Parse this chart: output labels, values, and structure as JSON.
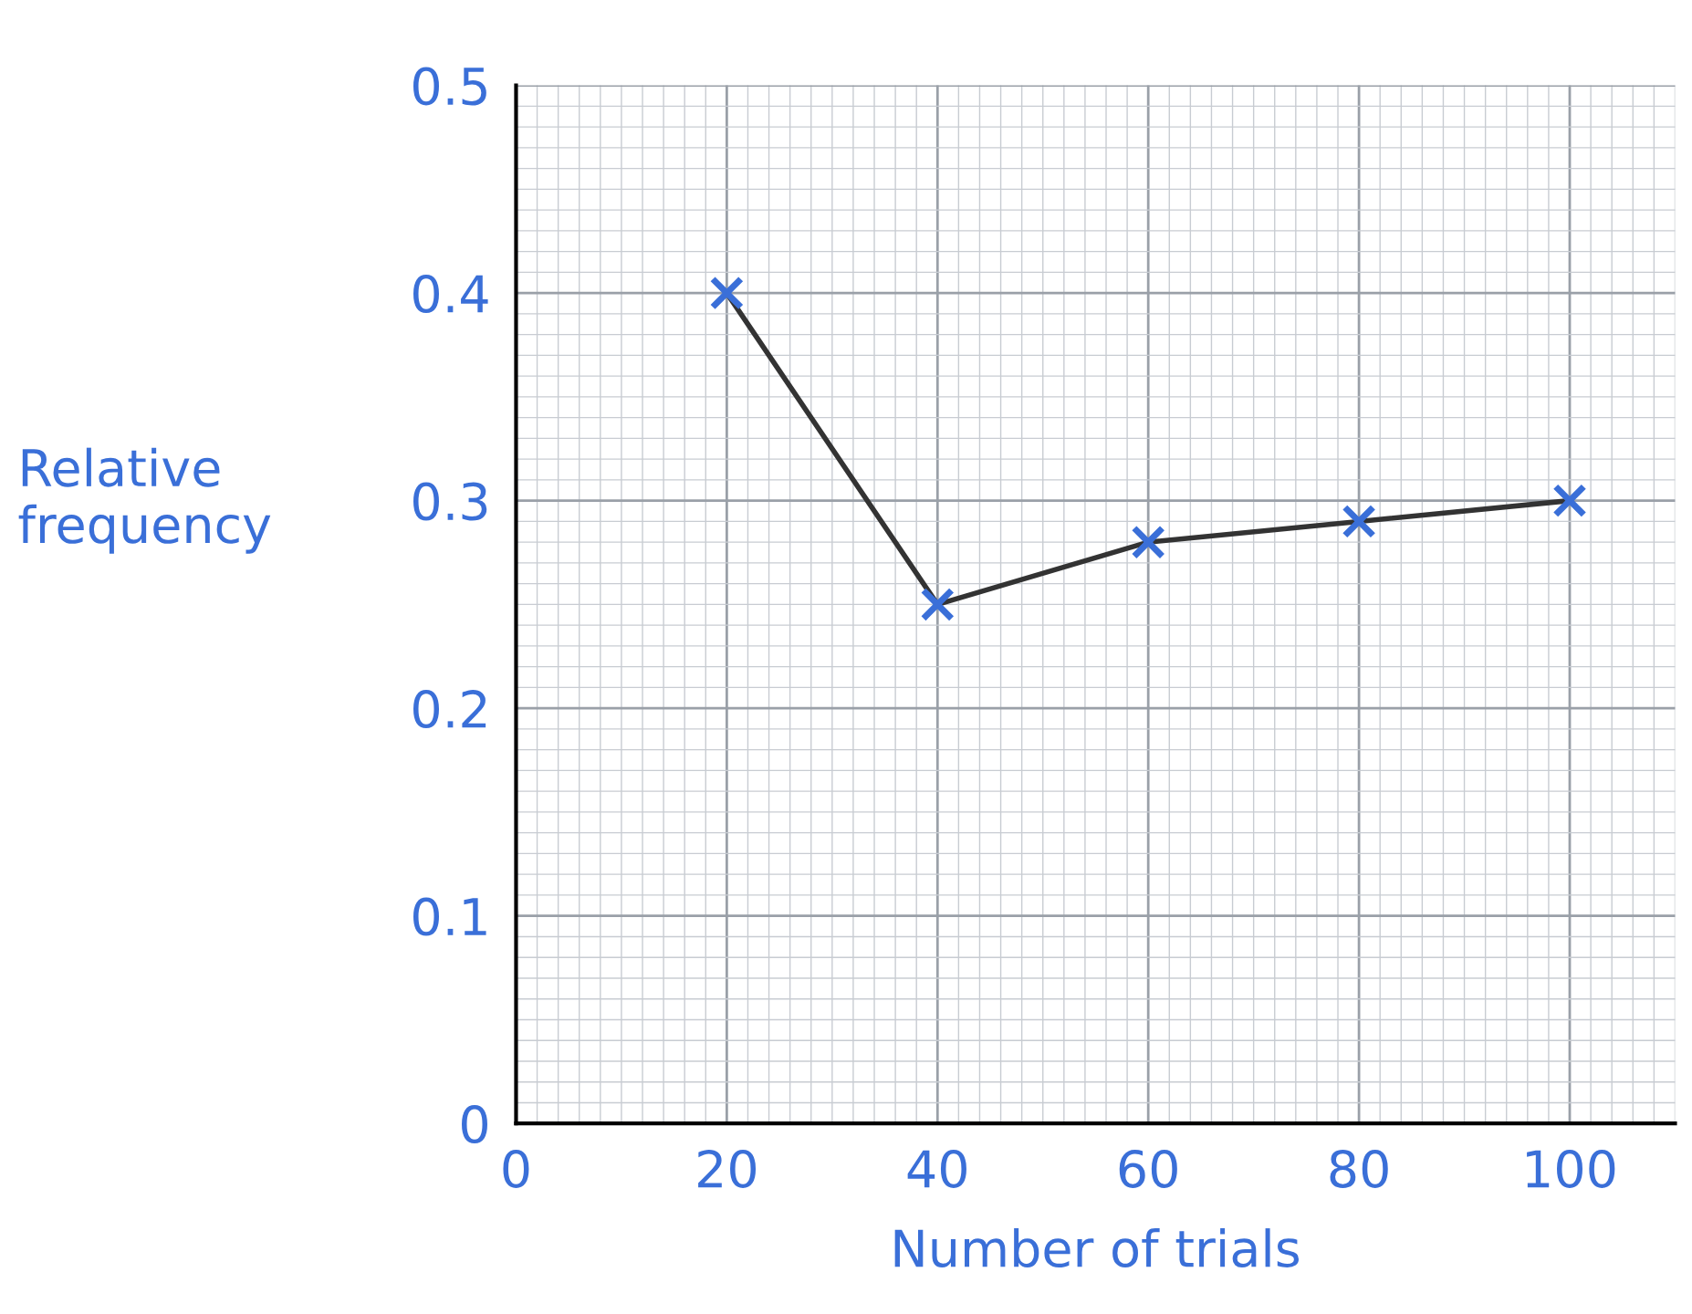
{
  "chart_data": {
    "type": "line",
    "xlabel": "Number of trials",
    "ylabel": "Relative\nfrequency",
    "x": [
      20,
      40,
      60,
      80,
      100
    ],
    "series": [
      {
        "color": "#333333",
        "values": [
          0.4,
          0.25,
          0.28,
          0.29,
          0.3
        ]
      }
    ],
    "marker": "cross",
    "line_style": "solid",
    "grid": true,
    "xlim": [
      0,
      110
    ],
    "xticks": [
      0,
      20,
      40,
      60,
      80,
      100
    ],
    "ylim": [
      0,
      0.5
    ],
    "yticks": [
      0,
      0.1,
      0.2,
      0.3,
      0.4,
      0.5
    ]
  }
}
